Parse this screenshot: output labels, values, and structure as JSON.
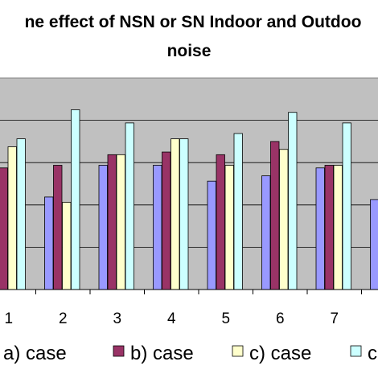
{
  "chart_data": {
    "type": "bar",
    "title_lines": [
      "ne effect of NSN or SN Indoor and Outdoo",
      "noise"
    ],
    "categories": [
      "1",
      "2",
      "3",
      "4",
      "5",
      "6",
      "7",
      ""
    ],
    "series": [
      {
        "name": "a) case",
        "color": "#9999FF",
        "values": [
          null,
          17.5,
          23.5,
          23.5,
          20.5,
          21.5,
          23,
          17
        ]
      },
      {
        "name": "b) case",
        "color": "#993366",
        "values": [
          23,
          23.5,
          25.5,
          26,
          25.5,
          28,
          23.5,
          null
        ]
      },
      {
        "name": "c) case",
        "color": "#FFFFCC",
        "values": [
          27,
          16.5,
          25.5,
          28.5,
          23.5,
          26.5,
          23.5,
          null
        ]
      },
      {
        "name": "c",
        "color": "#CCFFFF",
        "values": [
          28.5,
          34,
          31.5,
          28.5,
          29.5,
          33.5,
          31.5,
          null
        ]
      }
    ],
    "ylim": [
      0,
      40
    ],
    "grid": true,
    "plot_background": "#C0C0C0",
    "legend_position": "bottom"
  }
}
